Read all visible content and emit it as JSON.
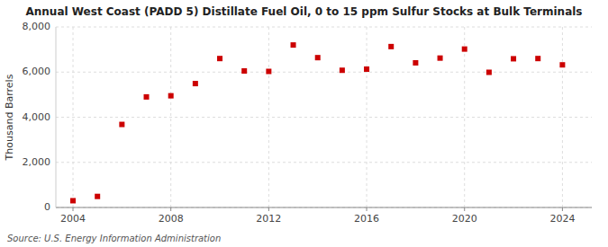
{
  "chart_data": {
    "type": "scatter",
    "title": "Annual West Coast (PADD 5) Distillate Fuel Oil, 0 to 15 ppm Sulfur Stocks at Bulk Terminals",
    "ylabel": "Thousand Barrels",
    "annotations": [
      "Source: U.S. Energy Information Administration"
    ],
    "x": [
      2004,
      2005,
      2006,
      2007,
      2008,
      2009,
      2010,
      2011,
      2012,
      2013,
      2014,
      2015,
      2016,
      2017,
      2018,
      2019,
      2020,
      2021,
      2022,
      2023,
      2024
    ],
    "values": [
      300,
      490,
      3680,
      4900,
      4950,
      5490,
      6600,
      6050,
      6030,
      7200,
      6640,
      6080,
      6130,
      7130,
      6410,
      6620,
      7020,
      5990,
      6590,
      6600,
      6320
    ],
    "color": "#cc0000",
    "marker": "square",
    "xlim": [
      2003.3,
      2025.2
    ],
    "xticks": [
      2004,
      2008,
      2012,
      2016,
      2020,
      2024
    ],
    "ylim": [
      0,
      8000
    ],
    "yticks": [
      0,
      {
        "value": 2000,
        "label": "2,000"
      },
      {
        "value": 4000,
        "label": "4,000"
      },
      {
        "value": 6000,
        "label": "6,000"
      },
      {
        "value": 8000,
        "label": "8,000"
      }
    ],
    "grid": true
  }
}
